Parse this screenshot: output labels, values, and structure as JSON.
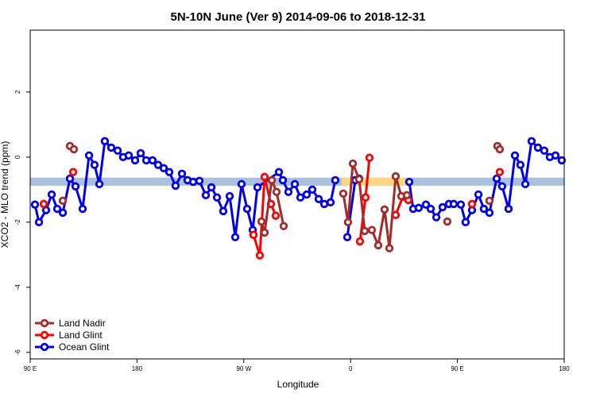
{
  "chart_data": {
    "type": "line",
    "title": "5N-10N June (Ver 9)   2014-09-06 to 2018-12-31",
    "xlabel": "Longitude",
    "ylabel": "XCO2 - MLO trend (ppm)",
    "xlim": [
      90,
      540
    ],
    "ylim": [
      -6.2,
      3.9
    ],
    "xticks": [
      {
        "value": 90,
        "label": "90 E"
      },
      {
        "value": 180,
        "label": "180"
      },
      {
        "value": 270,
        "label": "90 W"
      },
      {
        "value": 360,
        "label": "0"
      },
      {
        "value": 450,
        "label": "90 E"
      },
      {
        "value": 540,
        "label": "180"
      }
    ],
    "yticks": [
      2,
      0,
      -2,
      -4,
      -6
    ],
    "band": [
      -0.88,
      -0.63
    ],
    "band_color": "#a9c1de",
    "band_highlights": [
      [
        352.6,
        409.5
      ]
    ],
    "band_highlight_color": "#fcd77f",
    "legend": "bottom-left",
    "series": [
      {
        "name": "Land Nadir",
        "color": "#a52a2a",
        "x": [
          117.5,
          null,
          123.5,
          126.8,
          null,
          284.9,
          287.5,
          293.6,
          297.6,
          303.6,
          null,
          353.8,
          357.8,
          361.9,
          367.2,
          371.9,
          377.9,
          383.3,
          388.6,
          392.7,
          398.0,
          402.7,
          407.4,
          null,
          441.5,
          null,
          477.0,
          null,
          483.7,
          485.7
        ],
        "values": [
          -1.34,
          null,
          0.34,
          0.24,
          null,
          -1.98,
          -2.32,
          -0.71,
          -1.07,
          -2.12,
          null,
          -1.12,
          -2.0,
          -0.2,
          -0.68,
          -2.27,
          -2.24,
          -2.71,
          -1.61,
          -2.8,
          -0.59,
          -1.2,
          -1.17,
          null,
          -1.98,
          null,
          -1.34,
          null,
          0.34,
          0.24
        ]
      },
      {
        "name": "Land Glint",
        "color": "#ff0000",
        "x": [
          101.4,
          null,
          126.2,
          null,
          278.2,
          283.5,
          287.5,
          292.9,
          296.9,
          null,
          367.9,
          372.6,
          375.9,
          null,
          398.0,
          404.0,
          408.7,
          null,
          462.3,
          null,
          485.7
        ],
        "values": [
          -1.44,
          null,
          -0.46,
          null,
          -2.39,
          -3.02,
          -0.61,
          -1.44,
          -1.8,
          null,
          -2.59,
          -1.24,
          -0.02,
          null,
          -1.78,
          -1.22,
          -1.32,
          null,
          -1.44,
          null,
          -0.46
        ]
      },
      {
        "name": "Ocean Glint",
        "color": "#0000ee",
        "x": [
          94.0,
          97.4,
          103.4,
          108.1,
          112.8,
          117.5,
          123.5,
          128.2,
          134.2,
          139.6,
          144.2,
          148.3,
          152.9,
          158.3,
          163.7,
          168.3,
          173.0,
          178.4,
          183.1,
          187.8,
          193.1,
          197.8,
          202.5,
          207.2,
          212.5,
          217.9,
          222.6,
          227.3,
          232.6,
          238.0,
          242.7,
          247.4,
          252.7,
          258.1,
          262.8,
          268.1,
          272.8,
          277.5,
          281.5,
          299.6,
          302.9,
          307.6,
          313.0,
          317.7,
          323.0,
          327.7,
          333.1,
          337.8,
          343.1,
          347.1,
          null,
          357.2,
          363.9,
          367.2,
          null,
          409.4,
          412.7,
          417.4,
          423.5,
          427.5,
          432.2,
          437.5,
          442.9,
          446.9,
          452.9,
          456.9,
          462.3,
          467.7,
          472.3,
          477.0,
          483.1,
          487.7,
          493.1,
          498.5,
          503.1,
          507.2,
          512.5,
          517.9,
          523.2,
          527.9,
          532.6,
          537.9
        ],
        "values": [
          -1.46,
          -2.0,
          -1.63,
          -1.15,
          -1.59,
          -1.71,
          -0.66,
          -0.9,
          -1.59,
          0.05,
          -0.24,
          -0.83,
          0.49,
          0.29,
          0.2,
          0,
          0.05,
          -0.1,
          0.12,
          -0.1,
          -0.1,
          -0.24,
          -0.34,
          -0.46,
          -0.88,
          -0.51,
          -0.71,
          -0.76,
          -0.73,
          -1.17,
          -0.93,
          -1.24,
          -1.66,
          -1.2,
          -2.46,
          -0.83,
          -1.59,
          -2.24,
          -0.93,
          -0.46,
          -0.71,
          -1.07,
          -0.83,
          -1.24,
          -1.15,
          -1.0,
          -1.29,
          -1.44,
          -1.39,
          -0.71,
          null,
          -2.46,
          -0.71,
          -0.66,
          null,
          -0.76,
          -1.59,
          -1.56,
          -1.46,
          -1.59,
          -1.85,
          -1.54,
          -1.44,
          -1.44,
          -1.46,
          -2.0,
          -1.63,
          -1.15,
          -1.59,
          -1.71,
          -0.66,
          -0.9,
          -1.59,
          0.05,
          -0.24,
          -0.83,
          0.49,
          0.29,
          0.2,
          0,
          0.05,
          -0.1
        ]
      }
    ]
  }
}
